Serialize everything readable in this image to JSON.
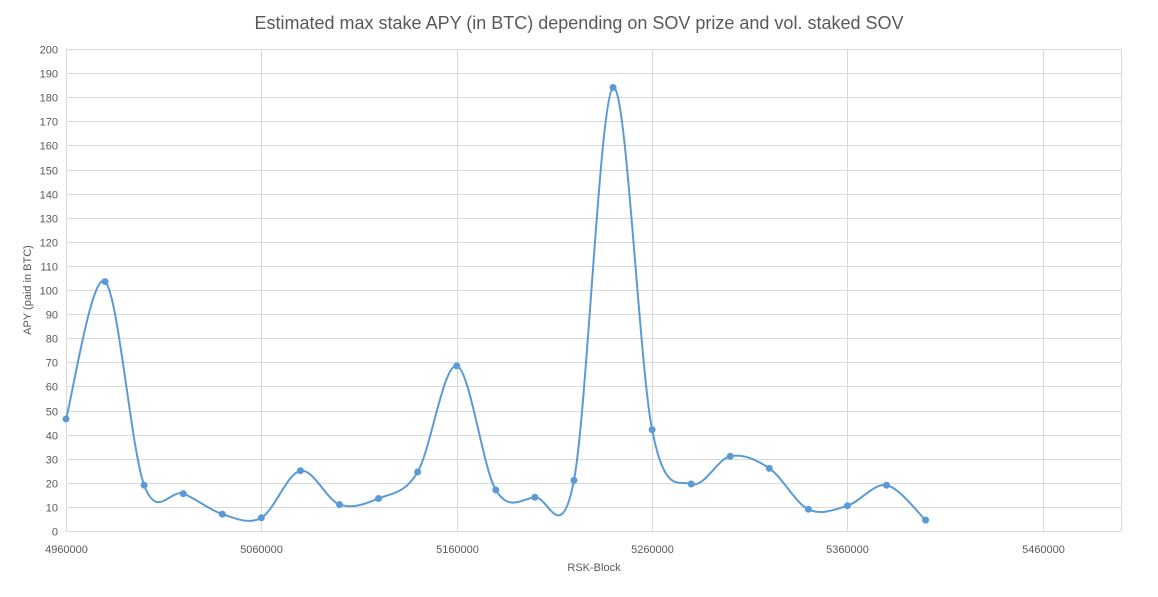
{
  "chart_data": {
    "type": "line",
    "title": "Estimated max stake APY (in BTC) depending on SOV prize and vol. staked SOV",
    "xlabel": "RSK-Block",
    "ylabel": "APY (paid in BTC)",
    "xlim": [
      4960000,
      5500000
    ],
    "ylim": [
      0,
      200
    ],
    "x_ticks": [
      4960000,
      5060000,
      5160000,
      5260000,
      5360000,
      5460000
    ],
    "y_ticks": [
      0,
      10,
      20,
      30,
      40,
      50,
      60,
      70,
      80,
      90,
      100,
      110,
      120,
      130,
      140,
      150,
      160,
      170,
      180,
      190,
      200
    ],
    "grid": true,
    "smooth": true,
    "colors": {
      "series": "#5b9bd5",
      "grid": "#d9d9d9",
      "text": "#595959"
    },
    "series": [
      {
        "x": [
          4960000,
          4980000,
          5000000,
          5020000,
          5040000,
          5060000,
          5080000,
          5100000,
          5120000,
          5140000,
          5160000,
          5180000,
          5200000,
          5220000,
          5240000,
          5260000,
          5280000,
          5300000,
          5320000,
          5340000,
          5360000,
          5380000,
          5400000
        ],
        "y": [
          46.5,
          103.5,
          19,
          15.5,
          7,
          5.5,
          25,
          11,
          13.5,
          24.5,
          68.5,
          17,
          14,
          21,
          184,
          42,
          19.5,
          31,
          26,
          9,
          10.5,
          19,
          4.5
        ]
      }
    ]
  }
}
